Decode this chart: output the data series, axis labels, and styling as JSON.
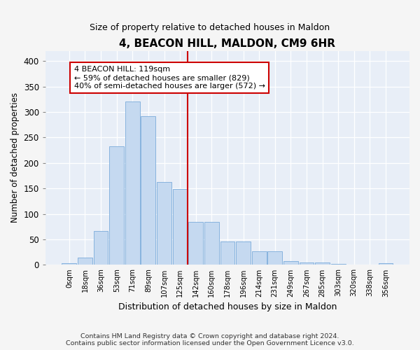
{
  "title": "4, BEACON HILL, MALDON, CM9 6HR",
  "subtitle": "Size of property relative to detached houses in Maldon",
  "xlabel": "Distribution of detached houses by size in Maldon",
  "ylabel": "Number of detached properties",
  "bin_labels": [
    "0sqm",
    "18sqm",
    "36sqm",
    "53sqm",
    "71sqm",
    "89sqm",
    "107sqm",
    "125sqm",
    "142sqm",
    "160sqm",
    "178sqm",
    "196sqm",
    "214sqm",
    "231sqm",
    "249sqm",
    "267sqm",
    "285sqm",
    "303sqm",
    "320sqm",
    "338sqm",
    "356sqm"
  ],
  "bar_values": [
    3,
    14,
    67,
    233,
    320,
    292,
    162,
    149,
    85,
    85,
    46,
    46,
    27,
    27,
    7,
    5,
    5,
    2,
    1,
    0,
    3
  ],
  "bar_color": "#c5d9f0",
  "bar_edge_color": "#7aabdb",
  "vline_x": 7.5,
  "vline_color": "#cc0000",
  "annotation_text": "4 BEACON HILL: 119sqm\n← 59% of detached houses are smaller (829)\n40% of semi-detached houses are larger (572) →",
  "annotation_box_color": "#ffffff",
  "annotation_box_edge": "#cc0000",
  "ylim": [
    0,
    420
  ],
  "yticks": [
    0,
    50,
    100,
    150,
    200,
    250,
    300,
    350,
    400
  ],
  "background_color": "#e8eef7",
  "grid_color": "#ffffff",
  "footer_line1": "Contains HM Land Registry data © Crown copyright and database right 2024.",
  "footer_line2": "Contains public sector information licensed under the Open Government Licence v3.0."
}
